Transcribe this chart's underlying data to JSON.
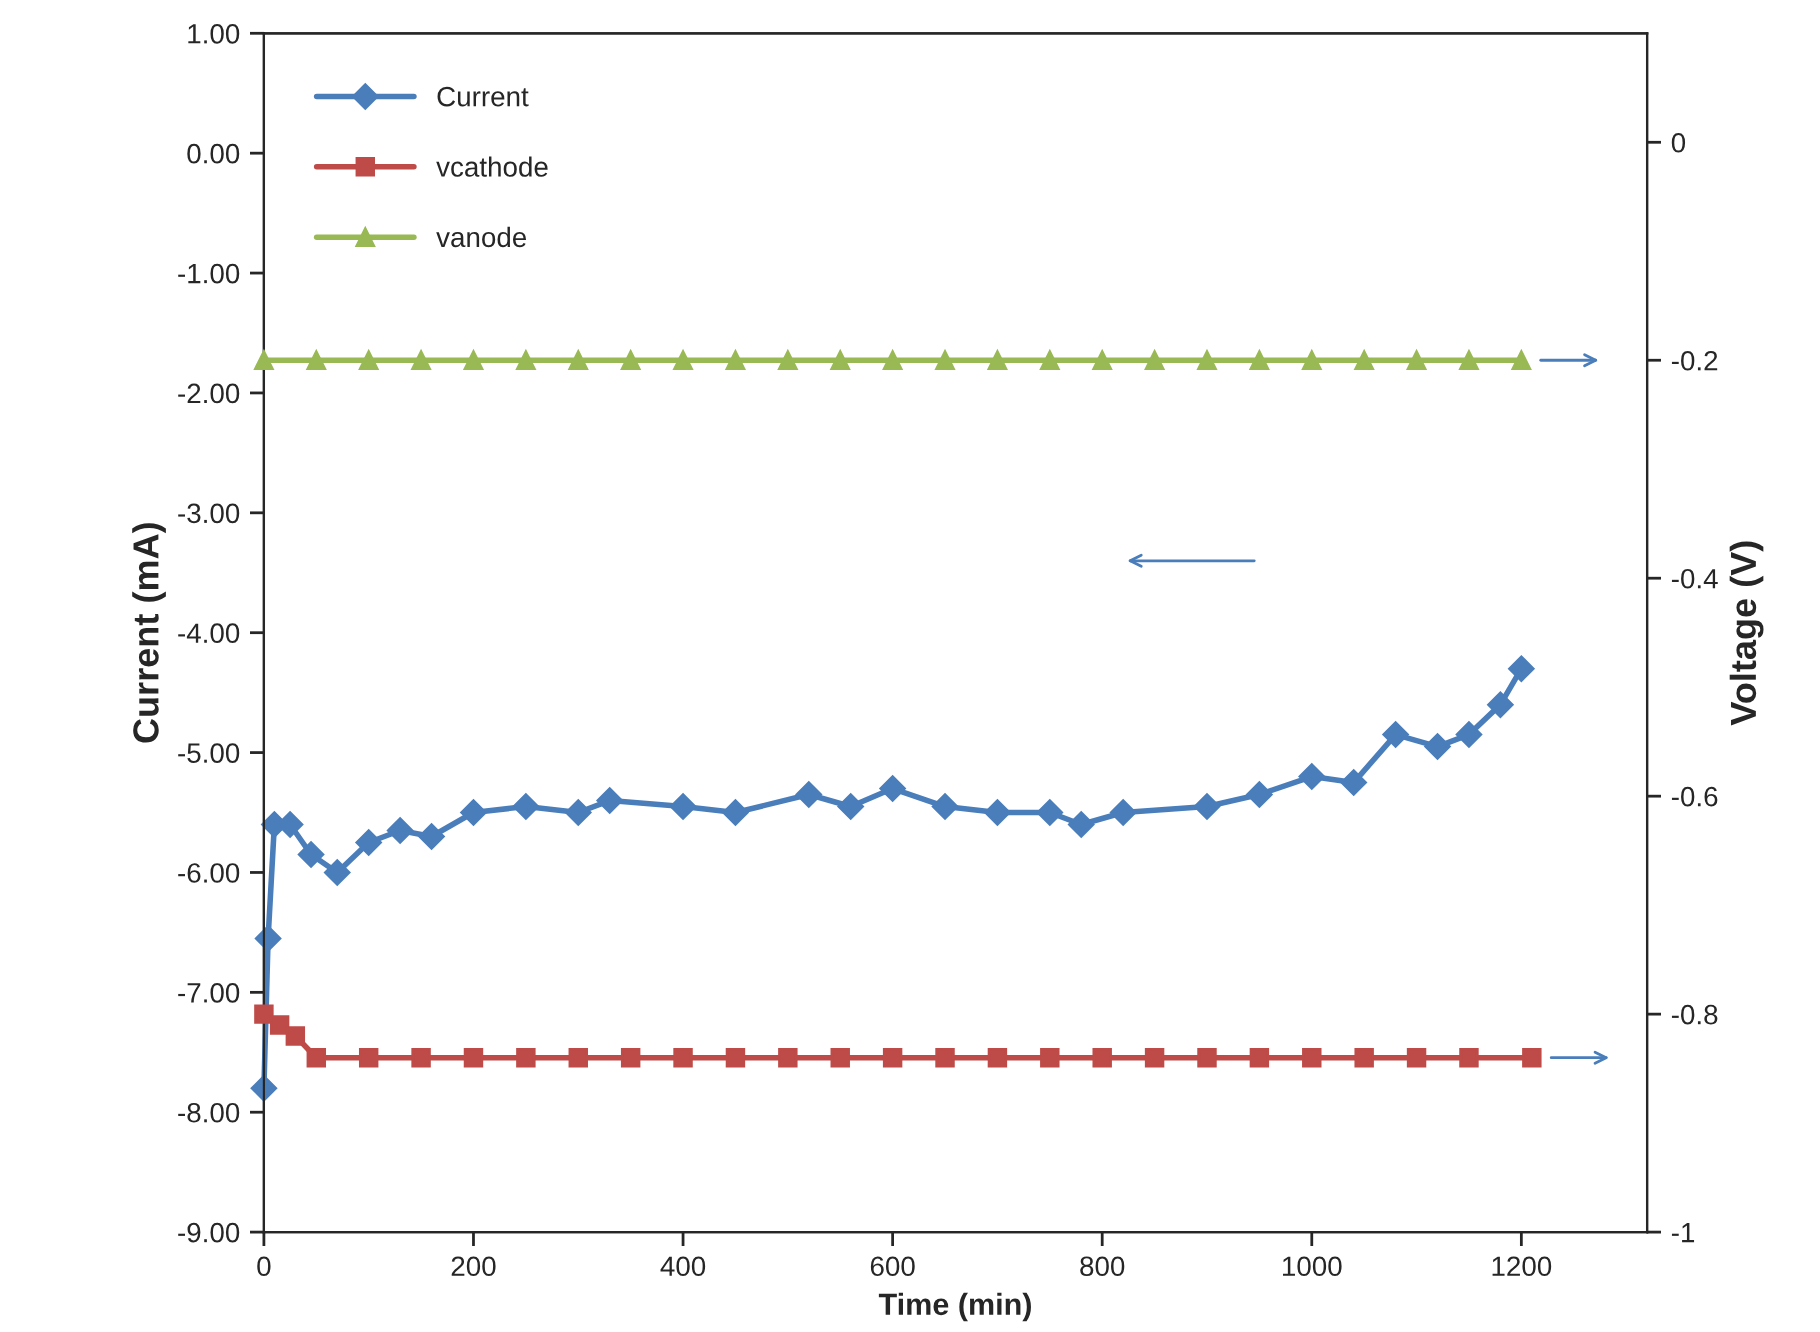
{
  "chart_data": {
    "type": "line",
    "xlabel": "Time (min)",
    "ylabel": "Current (mA)",
    "y2label": "Voltage (V)",
    "xlim": [
      0,
      1320
    ],
    "xticks": [
      0,
      200,
      400,
      600,
      800,
      1000,
      1200
    ],
    "ylim": [
      -9,
      1
    ],
    "yticks": [
      {
        "value": -9,
        "label": "-9.00"
      },
      {
        "value": -8,
        "label": "-8.00"
      },
      {
        "value": -7,
        "label": "-7.00"
      },
      {
        "value": -6,
        "label": "-6.00"
      },
      {
        "value": -5,
        "label": "-5.00"
      },
      {
        "value": -4,
        "label": "-4.00"
      },
      {
        "value": -3,
        "label": "-3.00"
      },
      {
        "value": -2,
        "label": "-2.00"
      },
      {
        "value": -1,
        "label": "-1.00"
      },
      {
        "value": 0,
        "label": "0.00"
      },
      {
        "value": 1,
        "label": "1.00"
      }
    ],
    "y2lim": [
      -1,
      0.1
    ],
    "y2ticks": [
      {
        "value": -1,
        "label": "-1"
      },
      {
        "value": -0.8,
        "label": "-0.8"
      },
      {
        "value": -0.6,
        "label": "-0.6"
      },
      {
        "value": -0.4,
        "label": "-0.4"
      },
      {
        "value": -0.2,
        "label": "-0.2"
      },
      {
        "value": 0,
        "label": "0"
      }
    ],
    "grid": false,
    "legend": "top left",
    "series": [
      {
        "name": "Current",
        "color": "#4a7ebb",
        "marker": "diamond",
        "x": [
          0,
          4,
          10,
          25,
          45,
          70,
          100,
          130,
          160,
          200,
          250,
          300,
          330,
          400,
          450,
          520,
          560,
          600,
          650,
          700,
          750,
          780,
          820,
          900,
          950,
          1000,
          1040,
          1080,
          1120,
          1150,
          1180,
          1200
        ],
        "values": [
          -7.8,
          -6.55,
          -5.6,
          -5.6,
          -5.85,
          -6.0,
          -5.75,
          -5.65,
          -5.7,
          -5.5,
          -5.45,
          -5.5,
          -5.4,
          -5.45,
          -5.5,
          -5.35,
          -5.45,
          -5.3,
          -5.45,
          -5.5,
          -5.5,
          -5.6,
          -5.5,
          -5.45,
          -5.35,
          -5.2,
          -5.25,
          -4.85,
          -4.95,
          -4.85,
          -4.6,
          -4.3
        ]
      },
      {
        "name": "vcathode",
        "color": "#be4b48",
        "marker": "square",
        "axis": "y2",
        "x": [
          0,
          15,
          30,
          50,
          100,
          150,
          200,
          250,
          300,
          350,
          400,
          450,
          500,
          550,
          600,
          650,
          700,
          750,
          800,
          850,
          900,
          950,
          1000,
          1050,
          1100,
          1150,
          1210
        ],
        "values": [
          -0.8,
          -0.81,
          -0.82,
          -0.84,
          -0.84,
          -0.84,
          -0.84,
          -0.84,
          -0.84,
          -0.84,
          -0.84,
          -0.84,
          -0.84,
          -0.84,
          -0.84,
          -0.84,
          -0.84,
          -0.84,
          -0.84,
          -0.84,
          -0.84,
          -0.84,
          -0.84,
          -0.84,
          -0.84,
          -0.84,
          -0.84
        ]
      },
      {
        "name": "vanode",
        "color": "#98b954",
        "marker": "triangle",
        "axis": "y2",
        "x": [
          0,
          50,
          100,
          150,
          200,
          250,
          300,
          350,
          400,
          450,
          500,
          550,
          600,
          650,
          700,
          750,
          800,
          850,
          900,
          950,
          1000,
          1050,
          1100,
          1150,
          1200
        ],
        "values": [
          -0.2,
          -0.2,
          -0.2,
          -0.2,
          -0.2,
          -0.2,
          -0.2,
          -0.2,
          -0.2,
          -0.2,
          -0.2,
          -0.2,
          -0.2,
          -0.2,
          -0.2,
          -0.2,
          -0.2,
          -0.2,
          -0.2,
          -0.2,
          -0.2,
          -0.2,
          -0.2,
          -0.2,
          -0.2
        ]
      }
    ]
  }
}
